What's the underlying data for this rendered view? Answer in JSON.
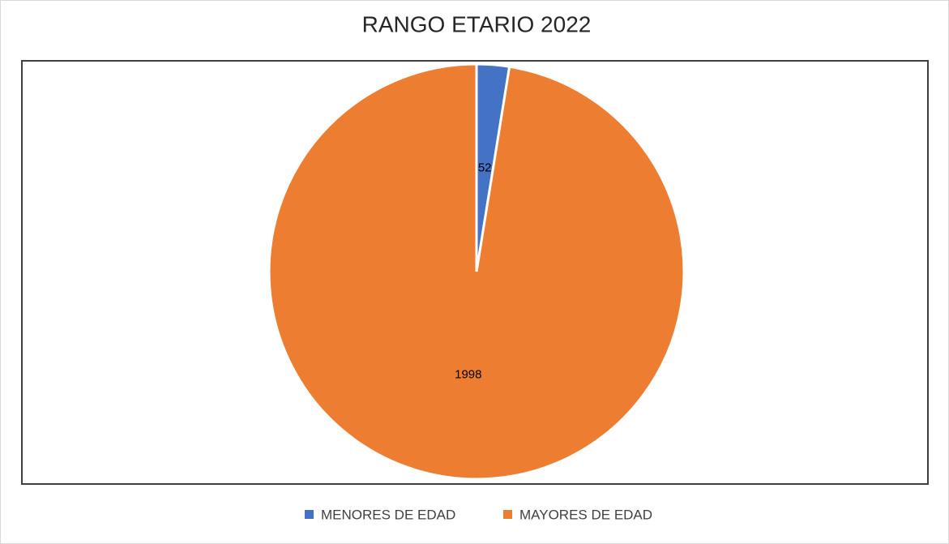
{
  "chart_data": {
    "type": "pie",
    "title": "RANGO ETARIO 2022",
    "categories": [
      "MENORES DE EDAD",
      "MAYORES DE EDAD"
    ],
    "values": [
      52,
      1998
    ],
    "colors": [
      "#4472c4",
      "#ed7d31"
    ],
    "legend": "bottom"
  }
}
